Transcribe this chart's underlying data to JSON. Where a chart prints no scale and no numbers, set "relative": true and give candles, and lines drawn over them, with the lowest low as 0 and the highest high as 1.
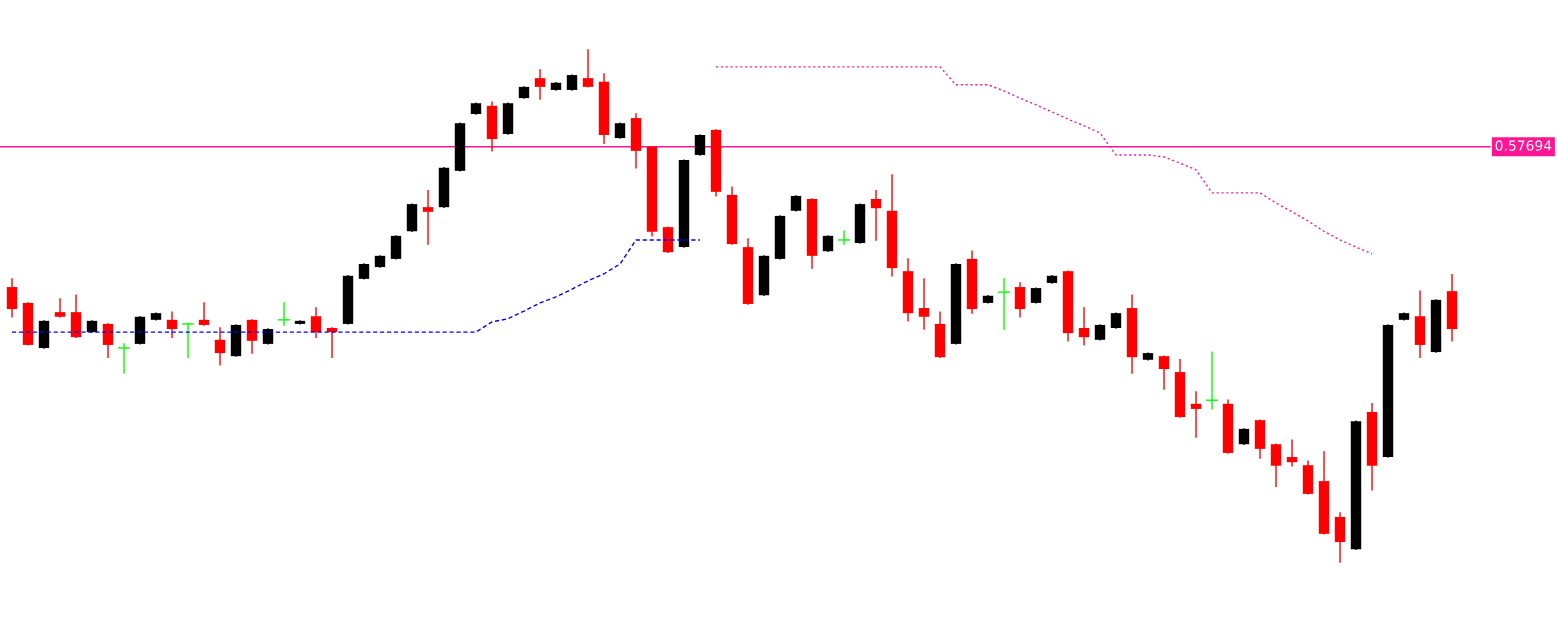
{
  "chart_data": {
    "type": "candlestick",
    "relative": true,
    "annotations": [
      "0.57694"
    ],
    "categories": [
      null,
      null,
      null,
      null,
      null,
      null,
      null,
      null,
      null,
      null,
      null,
      null,
      null,
      null,
      null,
      null,
      null,
      null,
      null,
      null,
      null,
      null,
      null,
      null,
      null,
      null,
      null,
      null,
      null,
      null,
      null,
      null,
      null,
      null,
      null,
      null,
      null,
      null,
      null,
      null,
      null,
      null,
      null,
      null,
      null,
      null,
      null,
      null,
      null,
      null,
      null,
      null,
      null,
      null,
      null,
      null,
      null,
      null,
      null,
      null,
      null,
      null,
      null,
      null,
      null,
      null,
      null,
      null,
      null,
      null,
      null,
      null,
      null,
      null,
      null,
      null,
      null,
      null,
      null,
      null,
      null,
      null,
      null,
      null,
      null,
      null,
      null,
      null,
      null,
      null,
      null
    ],
    "ohlc": [
      [
        0.537,
        0.553,
        0.479,
        0.494
      ],
      [
        0.506,
        0.506,
        0.424,
        0.424
      ],
      [
        0.418,
        0.471,
        0.418,
        0.471
      ],
      [
        0.488,
        0.514,
        0.479,
        0.479
      ],
      [
        0.488,
        0.521,
        0.439,
        0.439
      ],
      [
        0.449,
        0.471,
        0.449,
        0.471
      ],
      [
        0.465,
        0.465,
        0.4,
        0.424
      ],
      [
        0.418,
        0.426,
        0.369,
        0.418
      ],
      [
        0.426,
        0.479,
        0.426,
        0.479
      ],
      [
        0.473,
        0.486,
        0.473,
        0.486
      ],
      [
        0.473,
        0.488,
        0.439,
        0.455
      ],
      [
        0.465,
        0.465,
        0.4,
        0.465
      ],
      [
        0.473,
        0.506,
        0.463,
        0.463
      ],
      [
        0.434,
        0.457,
        0.385,
        0.408
      ],
      [
        0.402,
        0.463,
        0.402,
        0.463
      ],
      [
        0.473,
        0.473,
        0.408,
        0.432
      ],
      [
        0.426,
        0.455,
        0.426,
        0.455
      ],
      [
        0.473,
        0.506,
        0.463,
        0.473
      ],
      [
        0.465,
        0.471,
        0.465,
        0.471
      ],
      [
        0.48,
        0.496,
        0.439,
        0.449
      ],
      [
        0.457,
        0.457,
        0.4,
        0.449
      ],
      [
        0.465,
        0.559,
        0.465,
        0.559
      ],
      [
        0.553,
        0.582,
        0.553,
        0.582
      ],
      [
        0.576,
        0.598,
        0.576,
        0.598
      ],
      [
        0.592,
        0.637,
        0.592,
        0.637
      ],
      [
        0.646,
        0.699,
        0.646,
        0.699
      ],
      [
        0.693,
        0.725,
        0.621,
        0.684
      ],
      [
        0.693,
        0.77,
        0.693,
        0.77
      ],
      [
        0.764,
        0.857,
        0.764,
        0.857
      ],
      [
        0.875,
        0.896,
        0.875,
        0.896
      ],
      [
        0.891,
        0.898,
        0.803,
        0.826
      ],
      [
        0.836,
        0.896,
        0.836,
        0.896
      ],
      [
        0.906,
        0.928,
        0.906,
        0.928
      ],
      [
        0.945,
        0.961,
        0.904,
        0.928
      ],
      [
        0.922,
        0.936,
        0.922,
        0.936
      ],
      [
        0.922,
        0.951,
        0.922,
        0.951
      ],
      [
        0.945,
        1,
        0.928,
        0.928
      ],
      [
        0.938,
        0.953,
        0.818,
        0.834
      ],
      [
        0.828,
        0.857,
        0.828,
        0.857
      ],
      [
        0.867,
        0.875,
        0.77,
        0.803
      ],
      [
        0.811,
        0.811,
        0.637,
        0.645
      ],
      [
        0.654,
        0.654,
        0.605,
        0.605
      ],
      [
        0.615,
        0.785,
        0.615,
        0.785
      ],
      [
        0.795,
        0.834,
        0.795,
        0.834
      ],
      [
        0.844,
        0.844,
        0.715,
        0.723
      ],
      [
        0.717,
        0.732,
        0.621,
        0.621
      ],
      [
        0.615,
        0.631,
        0.504,
        0.504
      ],
      [
        0.521,
        0.598,
        0.521,
        0.598
      ],
      [
        0.592,
        0.676,
        0.592,
        0.676
      ],
      [
        0.686,
        0.715,
        0.686,
        0.715
      ],
      [
        0.709,
        0.709,
        0.574,
        0.598
      ],
      [
        0.607,
        0.637,
        0.607,
        0.637
      ],
      [
        0.629,
        0.646,
        0.621,
        0.629
      ],
      [
        0.623,
        0.699,
        0.623,
        0.699
      ],
      [
        0.709,
        0.725,
        0.629,
        0.691
      ],
      [
        0.686,
        0.756,
        0.559,
        0.574
      ],
      [
        0.568,
        0.592,
        0.471,
        0.486
      ],
      [
        0.496,
        0.553,
        0.455,
        0.479
      ],
      [
        0.465,
        0.488,
        0.4,
        0.4
      ],
      [
        0.426,
        0.582,
        0.426,
        0.582
      ],
      [
        0.592,
        0.607,
        0.486,
        0.494
      ],
      [
        0.506,
        0.52,
        0.506,
        0.52
      ],
      [
        0.527,
        0.553,
        0.455,
        0.527
      ],
      [
        0.537,
        0.545,
        0.479,
        0.494
      ],
      [
        0.506,
        0.535,
        0.506,
        0.535
      ],
      [
        0.545,
        0.559,
        0.545,
        0.559
      ],
      [
        0.568,
        0.568,
        0.432,
        0.447
      ],
      [
        0.457,
        0.496,
        0.424,
        0.439
      ],
      [
        0.434,
        0.463,
        0.434,
        0.463
      ],
      [
        0.457,
        0.486,
        0.457,
        0.486
      ],
      [
        0.496,
        0.521,
        0.369,
        0.4
      ],
      [
        0.395,
        0.408,
        0.395,
        0.408
      ],
      [
        0.402,
        0.402,
        0.338,
        0.377
      ],
      [
        0.371,
        0.395,
        0.283,
        0.283
      ],
      [
        0.309,
        0.332,
        0.244,
        0.299
      ],
      [
        0.316,
        0.41,
        0.299,
        0.316
      ],
      [
        0.309,
        0.316,
        0.213,
        0.213
      ],
      [
        0.23,
        0.26,
        0.23,
        0.26
      ],
      [
        0.277,
        0.277,
        0.203,
        0.221
      ],
      [
        0.23,
        0.23,
        0.148,
        0.188
      ],
      [
        0.205,
        0.238,
        0.188,
        0.195
      ],
      [
        0.189,
        0.197,
        0.133,
        0.133
      ],
      [
        0.158,
        0.215,
        0.055,
        0.055
      ],
      [
        0.088,
        0.096,
        0,
        0.039
      ],
      [
        0.025,
        0.275,
        0.025,
        0.275
      ],
      [
        0.293,
        0.309,
        0.141,
        0.188
      ],
      [
        0.205,
        0.463,
        0.205,
        0.463
      ],
      [
        0.473,
        0.486,
        0.473,
        0.486
      ],
      [
        0.48,
        0.529,
        0.4,
        0.424
      ],
      [
        0.41,
        0.512,
        0.41,
        0.512
      ],
      [
        0.529,
        0.561,
        0.432,
        0.455
      ]
    ],
    "colors": [
      "#ff0000",
      "#ff0000",
      "#000000",
      "#ff0000",
      "#ff0000",
      "#000000",
      "#ff0000",
      "#00ff00",
      "#000000",
      "#000000",
      "#ff0000",
      "#00ff00",
      "#ff0000",
      "#ff0000",
      "#000000",
      "#ff0000",
      "#000000",
      "#00ff00",
      "#000000",
      "#ff0000",
      "#ff0000",
      "#000000",
      "#000000",
      "#000000",
      "#000000",
      "#000000",
      "#ff0000",
      "#000000",
      "#000000",
      "#000000",
      "#ff0000",
      "#000000",
      "#000000",
      "#ff0000",
      "#000000",
      "#000000",
      "#ff0000",
      "#ff0000",
      "#000000",
      "#ff0000",
      "#ff0000",
      "#ff0000",
      "#000000",
      "#000000",
      "#ff0000",
      "#ff0000",
      "#ff0000",
      "#000000",
      "#000000",
      "#000000",
      "#ff0000",
      "#000000",
      "#00ff00",
      "#000000",
      "#ff0000",
      "#ff0000",
      "#ff0000",
      "#ff0000",
      "#ff0000",
      "#000000",
      "#ff0000",
      "#000000",
      "#00ff00",
      "#ff0000",
      "#000000",
      "#000000",
      "#ff0000",
      "#ff0000",
      "#000000",
      "#000000",
      "#ff0000",
      "#000000",
      "#ff0000",
      "#ff0000",
      "#ff0000",
      "#00ff00",
      "#ff0000",
      "#000000",
      "#ff0000",
      "#ff0000",
      "#ff0000",
      "#ff0000",
      "#ff0000",
      "#ff0000",
      "#000000",
      "#ff0000",
      "#000000",
      "#000000",
      "#ff0000",
      "#000000",
      "#ff0000"
    ],
    "series": [
      {
        "type": "line",
        "color": "#0000ff",
        "line_style": "dashed",
        "values": [
          0.449,
          0.449,
          0.449,
          0.449,
          0.449,
          0.449,
          0.449,
          0.449,
          0.449,
          0.449,
          0.449,
          0.449,
          0.449,
          0.449,
          0.449,
          0.449,
          0.449,
          0.449,
          0.449,
          0.449,
          0.449,
          0.449,
          0.449,
          0.449,
          0.449,
          0.449,
          0.449,
          0.449,
          0.449,
          0.449,
          0.469,
          0.475,
          0.49,
          0.506,
          0.518,
          0.533,
          0.549,
          0.563,
          0.582,
          0.629,
          0.629,
          0.629,
          0.629,
          0.629,
          null,
          null,
          null,
          null,
          null,
          null,
          null,
          null,
          null,
          null,
          null,
          null,
          null,
          null,
          null,
          null,
          null,
          null,
          null,
          null,
          null,
          null,
          null,
          null,
          null,
          null,
          null,
          null,
          null,
          null,
          null,
          null,
          null,
          null,
          null,
          null,
          null,
          null,
          null,
          null,
          null,
          null,
          null,
          null,
          null,
          null,
          null
        ]
      },
      {
        "type": "line",
        "color": "#ff1493",
        "line_style": "dotted",
        "values": [
          null,
          null,
          null,
          null,
          null,
          null,
          null,
          null,
          null,
          null,
          null,
          null,
          null,
          null,
          null,
          null,
          null,
          null,
          null,
          null,
          null,
          null,
          null,
          null,
          null,
          null,
          null,
          null,
          null,
          null,
          null,
          null,
          null,
          null,
          null,
          null,
          null,
          null,
          null,
          null,
          null,
          null,
          null,
          null,
          0.967,
          0.967,
          0.967,
          0.967,
          0.967,
          0.967,
          0.967,
          0.967,
          0.967,
          0.967,
          0.967,
          0.967,
          0.967,
          0.967,
          0.967,
          0.932,
          0.932,
          0.932,
          0.92,
          0.906,
          0.893,
          0.879,
          0.865,
          0.852,
          0.838,
          0.795,
          0.795,
          0.795,
          0.791,
          0.779,
          0.766,
          0.721,
          0.721,
          0.721,
          0.721,
          0.701,
          0.684,
          0.666,
          0.646,
          0.629,
          0.615,
          0.602,
          null,
          null,
          null,
          null,
          null
        ]
      }
    ],
    "ref_lines": [
      {
        "axis": "y",
        "value": 0.811,
        "color": "#ff1493"
      }
    ]
  }
}
